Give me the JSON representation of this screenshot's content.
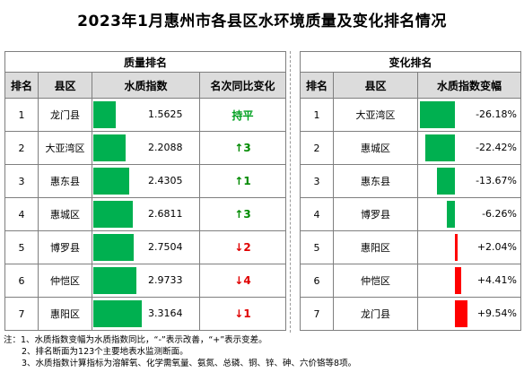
{
  "title": "2023年1月惠州市各县区水环境质量及变化排名情况",
  "quality_section": {
    "heading": "质量排名",
    "columns": [
      "排名",
      "县区",
      "水质指数",
      "名次同比变化"
    ],
    "max_index": 3.3164,
    "rows": [
      {
        "rank": "1",
        "district": "龙门县",
        "index_text": "1.5625",
        "index": 1.5625,
        "change_arrow": "",
        "change_text": "持平",
        "direction": "flat"
      },
      {
        "rank": "2",
        "district": "大亚湾区",
        "index_text": "2.2088",
        "index": 2.2088,
        "change_arrow": "↑",
        "change_text": "3",
        "direction": "up"
      },
      {
        "rank": "3",
        "district": "惠东县",
        "index_text": "2.4305",
        "index": 2.4305,
        "change_arrow": "↑",
        "change_text": "1",
        "direction": "up"
      },
      {
        "rank": "4",
        "district": "惠城区",
        "index_text": "2.6811",
        "index": 2.6811,
        "change_arrow": "↑",
        "change_text": "3",
        "direction": "up"
      },
      {
        "rank": "5",
        "district": "博罗县",
        "index_text": "2.7504",
        "index": 2.7504,
        "change_arrow": "↓",
        "change_text": "2",
        "direction": "down"
      },
      {
        "rank": "6",
        "district": "仲恺区",
        "index_text": "2.9733",
        "index": 2.9733,
        "change_arrow": "↓",
        "change_text": "4",
        "direction": "down"
      },
      {
        "rank": "7",
        "district": "惠阳区",
        "index_text": "3.3164",
        "index": 3.3164,
        "change_arrow": "↓",
        "change_text": "1",
        "direction": "down"
      }
    ]
  },
  "change_section": {
    "heading": "变化排名",
    "columns": [
      "排名",
      "县区",
      "水质指数变幅"
    ],
    "max_abs_change": 26.18,
    "rows": [
      {
        "rank": "1",
        "district": "大亚湾区",
        "change_text": "-26.18%",
        "change": -26.18
      },
      {
        "rank": "2",
        "district": "惠城区",
        "change_text": "-22.42%",
        "change": -22.42
      },
      {
        "rank": "3",
        "district": "惠东县",
        "change_text": "-13.67%",
        "change": -13.67
      },
      {
        "rank": "4",
        "district": "博罗县",
        "change_text": "-6.26%",
        "change": -6.26
      },
      {
        "rank": "5",
        "district": "惠阳区",
        "change_text": "+2.04%",
        "change": 2.04
      },
      {
        "rank": "6",
        "district": "仲恺区",
        "change_text": "+4.41%",
        "change": 4.41
      },
      {
        "rank": "7",
        "district": "龙门县",
        "change_text": "+9.54%",
        "change": 9.54
      }
    ]
  },
  "colors": {
    "improve": "#00b050",
    "worsen": "#ff0000",
    "header_bg": "#dcdcdc"
  },
  "notes": [
    "注：1、水质指数变幅为水质指数同比，“-”表示改善，“+”表示变差。",
    "2、排名断面为123个主要地表水监测断面。",
    "3、水质指数计算指标为溶解氧、化学需氧量、氨氮、总磷、铜、锌、砷、六价铬等8项。"
  ]
}
